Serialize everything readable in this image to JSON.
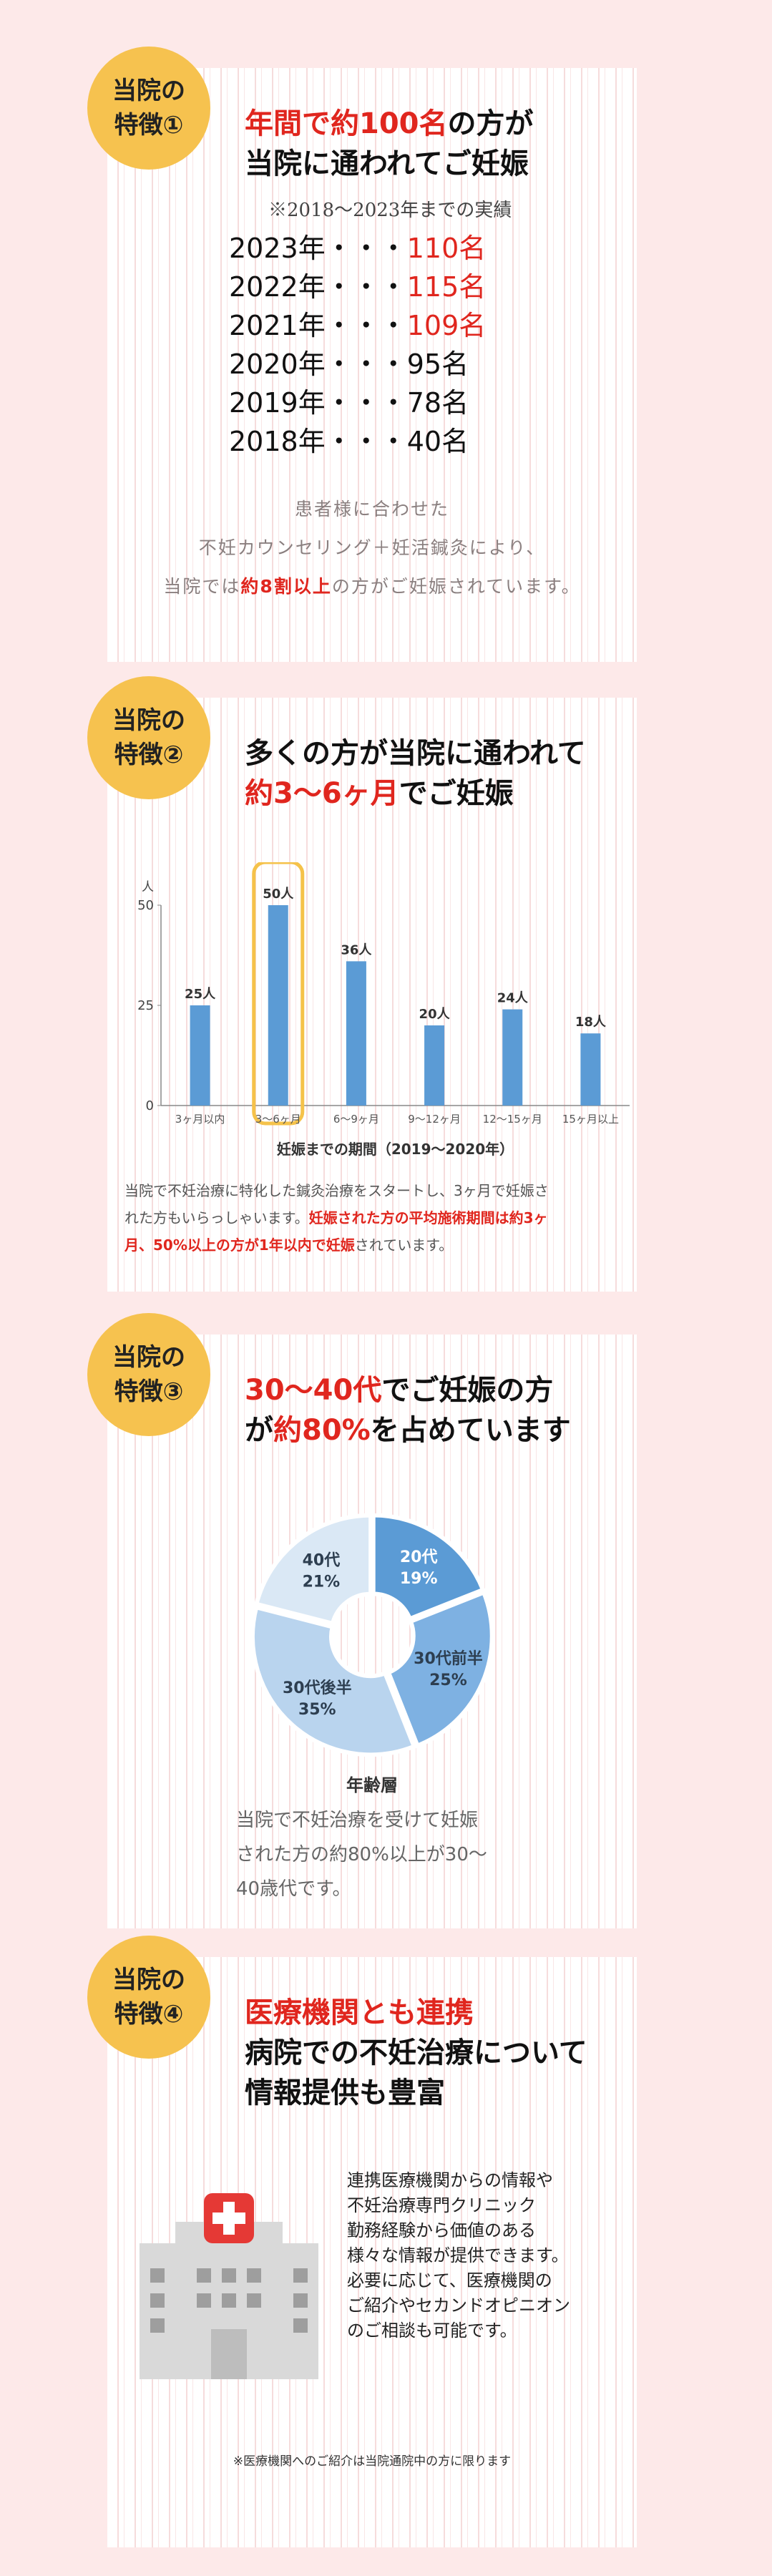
{
  "colors": {
    "page_bg": "#fde9e9",
    "badge": "#f6c24f",
    "accent_red": "#e0261e",
    "bar_blue": "#5b9bd5",
    "highlight": "#f5c24a"
  },
  "section1": {
    "badge": [
      "当院の",
      "特徴①"
    ],
    "title_line1_red": "年間で約100名",
    "title_line1_rest": "の方が",
    "title_line2": "当院に通われてご妊娠",
    "note": "※2018～2023年までの実績",
    "years": [
      {
        "year": "2023年・・・",
        "count": "110名",
        "red": true
      },
      {
        "year": "2022年・・・",
        "count": "115名",
        "red": true
      },
      {
        "year": "2021年・・・",
        "count": "109名",
        "red": true
      },
      {
        "year": "2020年・・・",
        "count": "95名",
        "red": false
      },
      {
        "year": "2019年・・・",
        "count": "78名",
        "red": false
      },
      {
        "year": "2018年・・・",
        "count": "40名",
        "red": false
      }
    ],
    "desc_line1": "患者様に合わせた",
    "desc_line2": "不妊カウンセリング＋妊活鍼灸により、",
    "desc_line3_pre": "当院では",
    "desc_line3_red": "約8割以上",
    "desc_line3_post": "の方がご妊娠されています。"
  },
  "section2": {
    "badge": [
      "当院の",
      "特徴②"
    ],
    "title_line1": "多くの方が当院に通われて",
    "title_line2_red": "約3～6ヶ月",
    "title_line2_rest": "でご妊娠",
    "caption_1": "当院で不妊治療に特化した鍼灸治療をスタートし、3ヶ月で妊娠さ",
    "caption_2_pre": "れた方もいらっしゃいます。",
    "caption_2_red": "妊娠された方の平均施術期間は約3ヶ",
    "caption_3_red": "月、50%以上の方が1年以内で妊娠",
    "caption_3_post": "されています。"
  },
  "section3": {
    "badge": [
      "当院の",
      "特徴③"
    ],
    "title_line1_red": "30～40代",
    "title_line1_rest": "でご妊娠の方",
    "title_line2_pre": "が",
    "title_line2_red": "約80%",
    "title_line2_rest": "を占めています",
    "chart_title": "年齢層",
    "desc_line1": "当院で不妊治療を受けて妊娠",
    "desc_line2": "された方の約80%以上が30～",
    "desc_line3": "40歳代です。"
  },
  "section4": {
    "badge": [
      "当院の",
      "特徴④"
    ],
    "title_line1_red": "医療機関とも連携",
    "title_line2": "病院での不妊治療について",
    "title_line3": "情報提供も豊富",
    "body": [
      "連携医療機関からの情報や",
      "不妊治療専門クリニック",
      "勤務経験から価値のある",
      "様々な情報が提供できます。",
      "必要に応じて、医療機関の",
      "ご紹介やセカンドオピニオン",
      "のご相談も可能です。"
    ],
    "footnote": "※医療機関へのご紹介は当院通院中の方に限ります"
  },
  "chart_data": [
    {
      "type": "bar",
      "ylabel": "人",
      "xlabel": "妊娠までの期間（2019～2020年）",
      "ylim": [
        0,
        50
      ],
      "yticks": [
        0,
        25,
        50
      ],
      "categories": [
        "3ヶ月以内",
        "3～6ヶ月",
        "6～9ヶ月",
        "9～12ヶ月",
        "12～15ヶ月",
        "15ヶ月以上"
      ],
      "values": [
        25,
        50,
        36,
        20,
        24,
        18
      ],
      "data_labels": [
        "25人",
        "50人",
        "36人",
        "20人",
        "24人",
        "18人"
      ],
      "highlight_index": 1,
      "grid": false
    },
    {
      "type": "pie",
      "title": "年齢層",
      "slices": [
        {
          "label": "20代",
          "pct_label": "19%",
          "value": 19,
          "color": "#5b9bd5",
          "text_color": "#ffffff"
        },
        {
          "label": "30代前半",
          "pct_label": "25%",
          "value": 25,
          "color": "#7eb1e2",
          "text_color": "#2d3e50"
        },
        {
          "label": "30代後半",
          "pct_label": "35%",
          "value": 35,
          "color": "#b9d4ee",
          "text_color": "#2d3e50"
        },
        {
          "label": "40代",
          "pct_label": "21%",
          "value": 21,
          "color": "#dae8f5",
          "text_color": "#2d3e50"
        }
      ]
    }
  ]
}
